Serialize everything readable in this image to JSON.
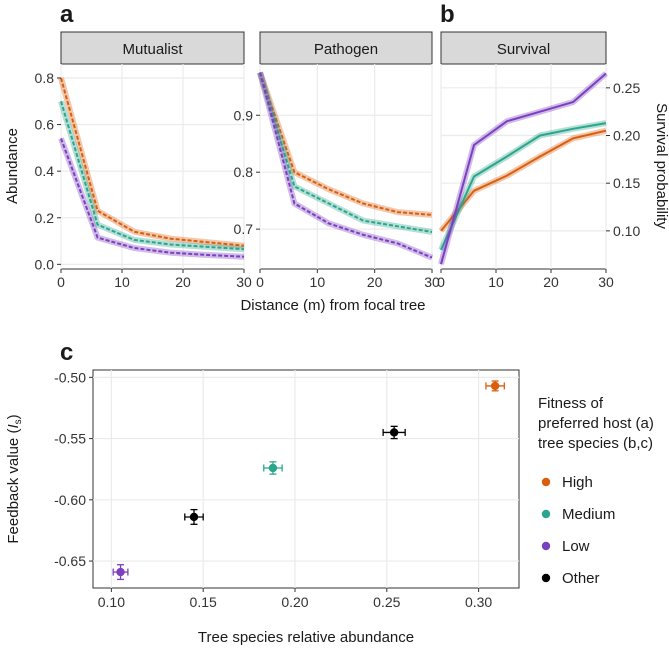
{
  "panel_letters": {
    "a": "a",
    "b": "b",
    "c": "c"
  },
  "colors": {
    "High": "#d95f0e",
    "Medium": "#2ca58d",
    "Low": "#7b3fbf",
    "Other": "#000000",
    "strip": "#d9d9d9",
    "grid": "#ebebeb"
  },
  "legend": {
    "title_line1": "Fitness of",
    "title_line2": "preferred host (a)",
    "title_line3": "tree species (b,c)",
    "entries": [
      "High",
      "Medium",
      "Low",
      "Other"
    ]
  },
  "chart_data": [
    {
      "type": "line",
      "title": "Mutualist",
      "ylabel": "Abundance",
      "xlabel": "",
      "xlim": [
        0,
        30
      ],
      "ylim": [
        -0.02,
        0.86
      ],
      "xticks": [
        "0",
        "10",
        "20",
        "30"
      ],
      "yticks": [
        "0.0",
        "0.2",
        "0.4",
        "0.6",
        "0.8"
      ],
      "x": [
        0,
        6,
        12,
        18,
        24,
        30
      ],
      "series": [
        {
          "name": "High",
          "values": [
            0.8,
            0.23,
            0.14,
            0.11,
            0.095,
            0.08
          ]
        },
        {
          "name": "Medium",
          "values": [
            0.7,
            0.17,
            0.105,
            0.085,
            0.075,
            0.065
          ]
        },
        {
          "name": "Low",
          "values": [
            0.54,
            0.115,
            0.07,
            0.05,
            0.04,
            0.033
          ]
        }
      ]
    },
    {
      "type": "line",
      "title": "Pathogen",
      "xlabel": "",
      "xlim": [
        0,
        30
      ],
      "ylim": [
        0.63,
        0.99
      ],
      "xticks": [
        "0",
        "10",
        "20",
        "30"
      ],
      "yticks": [
        "0.7",
        "0.8",
        "0.9"
      ],
      "x": [
        0,
        6,
        12,
        18,
        24,
        30
      ],
      "series": [
        {
          "name": "High",
          "values": [
            0.975,
            0.8,
            0.77,
            0.745,
            0.73,
            0.725
          ]
        },
        {
          "name": "Medium",
          "values": [
            0.975,
            0.775,
            0.745,
            0.715,
            0.705,
            0.695
          ]
        },
        {
          "name": "Low",
          "values": [
            0.975,
            0.745,
            0.71,
            0.69,
            0.675,
            0.65
          ]
        }
      ]
    },
    {
      "type": "line",
      "title": "Survival",
      "ylabel": "Survival probability",
      "xlabel": "",
      "xlim": [
        0,
        30
      ],
      "ylim": [
        0.06,
        0.275
      ],
      "xticks": [
        "0",
        "10",
        "20",
        "30"
      ],
      "yticks": [
        "0.10",
        "0.15",
        "0.20",
        "0.25"
      ],
      "x": [
        0,
        6,
        12,
        18,
        24,
        30
      ],
      "series": [
        {
          "name": "High",
          "values": [
            0.1,
            0.142,
            0.158,
            0.178,
            0.197,
            0.205
          ]
        },
        {
          "name": "Medium",
          "values": [
            0.08,
            0.157,
            0.178,
            0.2,
            0.207,
            0.213
          ]
        },
        {
          "name": "Low",
          "values": [
            0.065,
            0.19,
            0.215,
            0.225,
            0.235,
            0.265
          ]
        }
      ]
    },
    {
      "type": "scatter",
      "title": "",
      "xlabel": "Distance (m) from focal tree",
      "note": "shared x-axis label for panels a and b"
    },
    {
      "type": "scatter",
      "title": "",
      "xlabel": "Tree species relative abundance",
      "ylabel_main": "Feedback value (",
      "ylabel_italic": "I",
      "ylabel_sub": "s",
      "ylabel_close": ")",
      "xlim": [
        0.09,
        0.322
      ],
      "ylim": [
        -0.672,
        -0.494
      ],
      "xticks": [
        "0.10",
        "0.15",
        "0.20",
        "0.25",
        "0.30"
      ],
      "yticks": [
        "-0.65",
        "-0.60",
        "-0.55",
        "-0.50"
      ],
      "points": [
        {
          "name": "High",
          "x": 0.309,
          "y": -0.507,
          "xerr": 0.005,
          "yerr": 0.004
        },
        {
          "name": "Medium",
          "x": 0.188,
          "y": -0.574,
          "xerr": 0.005,
          "yerr": 0.005
        },
        {
          "name": "Low",
          "x": 0.105,
          "y": -0.659,
          "xerr": 0.004,
          "yerr": 0.006
        },
        {
          "name": "Other",
          "x": 0.145,
          "y": -0.614,
          "xerr": 0.005,
          "yerr": 0.006
        },
        {
          "name": "Other",
          "x": 0.254,
          "y": -0.545,
          "xerr": 0.006,
          "yerr": 0.005
        }
      ]
    }
  ]
}
